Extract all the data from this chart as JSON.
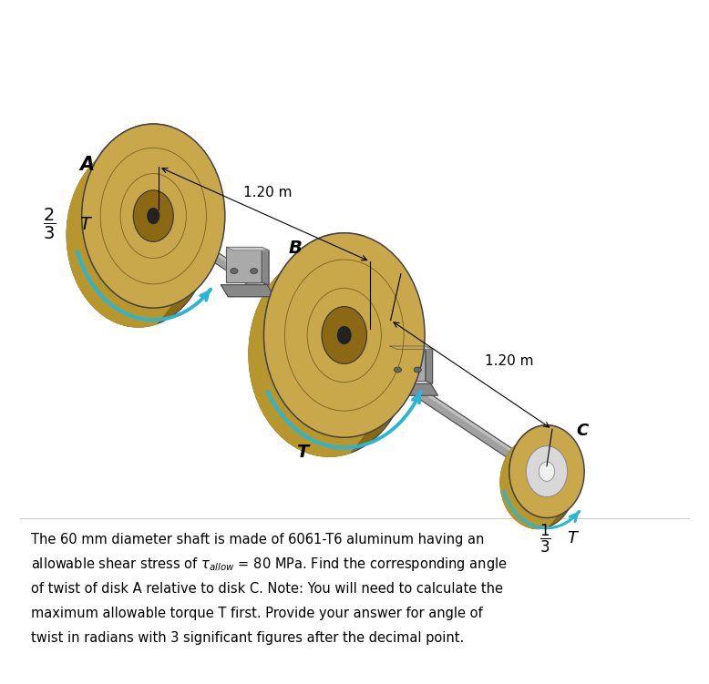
{
  "bg_color": "#ffffff",
  "fig_width": 7.78,
  "fig_height": 7.51,
  "label_A": "A",
  "label_B": "B",
  "label_C": "C",
  "label_T_B": "T",
  "dim_AB": "1.20 m",
  "dim_BC": "1.20 m",
  "disk_color_outer": "#c8a84b",
  "disk_color_inner": "#8B6914",
  "disk_color_rim": "#b8962e",
  "shaft_color_light": "#c0c0c0",
  "shaft_color_mid": "#a0a0a0",
  "shaft_color_dark": "#707070",
  "bearing_color_light": "#cccccc",
  "bearing_color_mid": "#aaaaaa",
  "bearing_color_dark": "#888888",
  "arrow_color": "#29b6d4",
  "line_color": "#000000",
  "text_color": "#000000",
  "text_line1": "The 60 mm diameter shaft is made of 6061-T6 aluminum having an",
  "text_line2": "allowable shear stress of $\\tau_{allow}$ = 80 MPa. Find the corresponding angle",
  "text_line3": "of twist of disk A relative to disk C. Note: You will need to calculate the",
  "text_line4": "maximum allowable torque T first. Provide your answer for angle of",
  "text_line5": "twist in radians with 3 significant figures after the decimal point."
}
